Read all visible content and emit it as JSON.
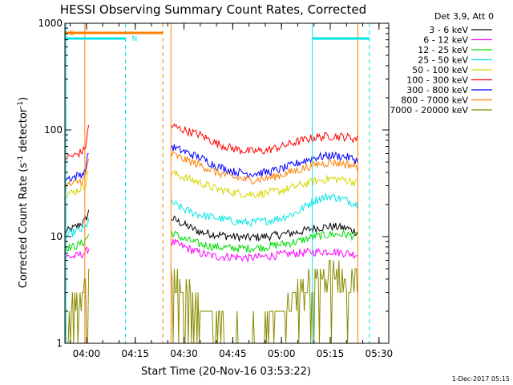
{
  "chart_data": {
    "type": "line",
    "title": "HESSI Observing Summary Count Rates, Corrected",
    "ylabel_main": "Corrected Count Rate (s",
    "ylabel_sup1": "-1",
    "ylabel_mid": " detector",
    "ylabel_sup2": "-1",
    "ylabel_end": ")",
    "xlabel": "Start Time (20-Nov-16 03:53:22)",
    "x_scale": "time",
    "y_scale": "log",
    "xlim": [
      "03:53:22",
      "05:33:00"
    ],
    "ylim": [
      1,
      1000
    ],
    "x_ticks": [
      "04:00",
      "04:15",
      "04:30",
      "04:45",
      "05:00",
      "05:15",
      "05:30"
    ],
    "y_ticks": [
      "1",
      "10",
      "100",
      "1000"
    ],
    "legend_title": "Det 3,9, Att 0",
    "legend_position": "right",
    "footer_date": "1-Dec-2017 05:15",
    "markers": {
      "saa_label": "S",
      "night_label": "N",
      "saa_color": "#ff8000",
      "night_color": "#00e5e5",
      "saa_interval": [
        "03:53:22",
        "04:23:30"
      ],
      "night_intervals": [
        [
          "03:53:22",
          "04:12:00"
        ],
        [
          "05:09:30",
          "05:27:00"
        ]
      ],
      "saa_lines": [
        "03:59:30",
        "04:23:30",
        "04:26:00",
        "05:23:30"
      ],
      "night_lines": [
        "03:53:40",
        "04:12:00",
        "05:09:30",
        "05:27:00"
      ]
    },
    "data_gaps": [
      [
        "04:01:00",
        "04:26:00"
      ],
      [
        "05:23:30",
        "05:33:00"
      ]
    ],
    "series": [
      {
        "name": "3 - 6 keV",
        "color": "#000000",
        "segments": [
          {
            "x": [
              "03:53:22",
              "03:56:00",
              "03:59:30",
              "04:01:00"
            ],
            "y": [
              11,
              12,
              14,
              18
            ]
          },
          {
            "x": [
              "04:26:00",
              "04:30:00",
              "04:35:00",
              "04:40:00",
              "04:45:00",
              "04:50:00",
              "04:55:00",
              "05:00:00",
              "05:05:00",
              "05:10:00",
              "05:15:00",
              "05:20:00",
              "05:23:30"
            ],
            "y": [
              15,
              13,
              11,
              10.5,
              10,
              9.8,
              10,
              10.5,
              11,
              12,
              12.5,
              12,
              11
            ]
          }
        ]
      },
      {
        "name": "6 - 12 keV",
        "color": "#ff00ff",
        "segments": [
          {
            "x": [
              "03:53:22",
              "03:56:00",
              "03:59:30",
              "04:01:00"
            ],
            "y": [
              6.5,
              6.5,
              7,
              8
            ]
          },
          {
            "x": [
              "04:26:00",
              "04:30:00",
              "04:35:00",
              "04:40:00",
              "04:45:00",
              "04:50:00",
              "04:55:00",
              "05:00:00",
              "05:05:00",
              "05:10:00",
              "05:15:00",
              "05:20:00",
              "05:23:30"
            ],
            "y": [
              9,
              8,
              7,
              6.5,
              6.5,
              6.3,
              6.5,
              6.8,
              7,
              7.2,
              7.3,
              7,
              6.8
            ]
          }
        ]
      },
      {
        "name": "12 - 25 keV",
        "color": "#00dd00",
        "segments": [
          {
            "x": [
              "03:53:22",
              "03:56:00",
              "03:59:30",
              "04:01:00"
            ],
            "y": [
              8,
              8,
              9,
              11
            ]
          },
          {
            "x": [
              "04:26:00",
              "04:30:00",
              "04:35:00",
              "04:40:00",
              "04:45:00",
              "04:50:00",
              "04:55:00",
              "05:00:00",
              "05:05:00",
              "05:10:00",
              "05:15:00",
              "05:20:00",
              "05:23:30"
            ],
            "y": [
              11,
              9.5,
              8.5,
              8,
              7.8,
              7.8,
              8,
              8.5,
              9,
              10,
              10.5,
              10.5,
              10
            ]
          }
        ]
      },
      {
        "name": "25 - 50 keV",
        "color": "#00e5e5",
        "segments": [
          {
            "x": [
              "03:53:22",
              "03:56:00",
              "03:59:30",
              "04:01:00"
            ],
            "y": [
              10,
              11,
              12,
              15
            ]
          },
          {
            "x": [
              "04:26:00",
              "04:30:00",
              "04:35:00",
              "04:40:00",
              "04:45:00",
              "04:50:00",
              "04:55:00",
              "05:00:00",
              "05:05:00",
              "05:10:00",
              "05:15:00",
              "05:20:00",
              "05:23:30"
            ],
            "y": [
              21,
              18,
              16,
              15,
              14,
              13.5,
              14,
              15,
              17,
              22,
              24,
              22,
              20
            ]
          }
        ]
      },
      {
        "name": "50 - 100 keV",
        "color": "#d6d600",
        "segments": [
          {
            "x": [
              "03:53:22",
              "03:56:00",
              "03:59:30",
              "04:01:00"
            ],
            "y": [
              25,
              26,
              30,
              45
            ]
          },
          {
            "x": [
              "04:26:00",
              "04:30:00",
              "04:35:00",
              "04:40:00",
              "04:45:00",
              "04:50:00",
              "04:55:00",
              "05:00:00",
              "05:05:00",
              "05:10:00",
              "05:15:00",
              "05:20:00",
              "05:23:30"
            ],
            "y": [
              40,
              36,
              32,
              28,
              26,
              25,
              25.5,
              27,
              30,
              33,
              35,
              34,
              32
            ]
          }
        ]
      },
      {
        "name": "100 - 300 keV",
        "color": "#ff0000",
        "segments": [
          {
            "x": [
              "03:53:22",
              "03:56:00",
              "03:59:30",
              "04:01:00"
            ],
            "y": [
              55,
              57,
              65,
              125
            ]
          },
          {
            "x": [
              "04:26:00",
              "04:30:00",
              "04:35:00",
              "04:40:00",
              "04:45:00",
              "04:50:00",
              "04:55:00",
              "05:00:00",
              "05:05:00",
              "05:10:00",
              "05:15:00",
              "05:20:00",
              "05:23:30"
            ],
            "y": [
              110,
              100,
              90,
              75,
              67,
              63,
              64,
              70,
              78,
              85,
              88,
              86,
              82
            ]
          }
        ]
      },
      {
        "name": "300 - 800 keV",
        "color": "#0000ff",
        "segments": [
          {
            "x": [
              "03:53:22",
              "03:56:00",
              "03:59:30",
              "04:01:00"
            ],
            "y": [
              35,
              36,
              40,
              70
            ]
          },
          {
            "x": [
              "04:26:00",
              "04:30:00",
              "04:35:00",
              "04:40:00",
              "04:45:00",
              "04:50:00",
              "04:55:00",
              "05:00:00",
              "05:05:00",
              "05:10:00",
              "05:15:00",
              "05:20:00",
              "05:23:30"
            ],
            "y": [
              70,
              63,
              55,
              46,
              41,
              39,
              40,
              43,
              49,
              55,
              58,
              56,
              52
            ]
          }
        ]
      },
      {
        "name": "800 - 7000 keV",
        "color": "#ff8000",
        "segments": [
          {
            "x": [
              "03:53:22",
              "03:56:00",
              "03:59:30",
              "04:01:00"
            ],
            "y": [
              30,
              31,
              35,
              60
            ]
          },
          {
            "x": [
              "04:26:00",
              "04:30:00",
              "04:35:00",
              "04:40:00",
              "04:45:00",
              "04:50:00",
              "04:55:00",
              "05:00:00",
              "05:05:00",
              "05:10:00",
              "05:15:00",
              "05:20:00",
              "05:23:30"
            ],
            "y": [
              60,
              53,
              47,
              40,
              36,
              34,
              35,
              38,
              42,
              47,
              50,
              48,
              45
            ]
          }
        ]
      },
      {
        "name": "7000 - 20000 keV",
        "color": "#8a8a00",
        "segments": [
          {
            "x": [
              "03:53:22",
              "03:56:00",
              "03:59:30",
              "04:01:00"
            ],
            "y": [
              2,
              2.5,
              3,
              5
            ]
          },
          {
            "x": [
              "04:26:00",
              "04:30:00",
              "04:35:00",
              "04:40:00",
              "04:45:00",
              "04:50:00",
              "04:55:00",
              "05:00:00",
              "05:05:00",
              "05:10:00",
              "05:15:00",
              "05:20:00",
              "05:23:30"
            ],
            "y": [
              4.5,
              3.5,
              2.5,
              1.5,
              1.2,
              1.2,
              1.5,
              2,
              3,
              4,
              4.5,
              4.5,
              4
            ]
          }
        ]
      }
    ]
  }
}
